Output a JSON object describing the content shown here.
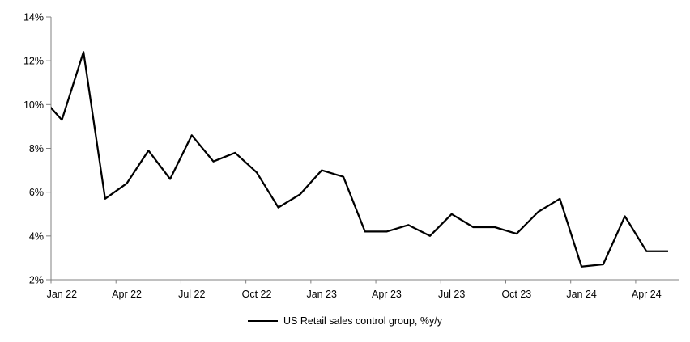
{
  "chart_data": {
    "type": "line",
    "title": "",
    "xlabel": "",
    "ylabel": "",
    "categories": [
      "Dec 21",
      "Jan 22",
      "Feb 22",
      "Mar 22",
      "Apr 22",
      "May 22",
      "Jun 22",
      "Jul 22",
      "Aug 22",
      "Sep 22",
      "Oct 22",
      "Nov 22",
      "Dec 22",
      "Jan 23",
      "Feb 23",
      "Mar 23",
      "Apr 23",
      "May 23",
      "Jun 23",
      "Jul 23",
      "Aug 23",
      "Sep 23",
      "Oct 23",
      "Nov 23",
      "Dec 23",
      "Jan 24",
      "Feb 24",
      "Mar 24",
      "Apr 24",
      "May 24"
    ],
    "series": [
      {
        "name": "US Retail sales control group, %y/y",
        "color": "#000000",
        "values": [
          10.4,
          9.3,
          12.4,
          5.7,
          6.4,
          7.9,
          6.6,
          8.6,
          7.4,
          7.8,
          6.9,
          5.3,
          5.9,
          7.0,
          6.7,
          4.2,
          4.2,
          4.5,
          4.0,
          5.0,
          4.4,
          4.4,
          4.1,
          5.1,
          5.7,
          2.6,
          2.7,
          4.9,
          3.3,
          3.3
        ]
      }
    ],
    "xtick_labels": [
      "Jan 22",
      "Apr 22",
      "Jul 22",
      "Oct 22",
      "Jan 23",
      "Apr 23",
      "Jul 23",
      "Oct 23",
      "Jan 24",
      "Apr 24"
    ],
    "xtick_every_n_categories": 3,
    "ylim": [
      2,
      14
    ],
    "ytick_step": 2,
    "ytick_suffix": "%",
    "grid": false,
    "legend_position": "bottom-center",
    "axis_color": "#808080",
    "text_color": "#000000",
    "line_width": 2.25,
    "first_point_clipped_at_left_axis": true
  }
}
